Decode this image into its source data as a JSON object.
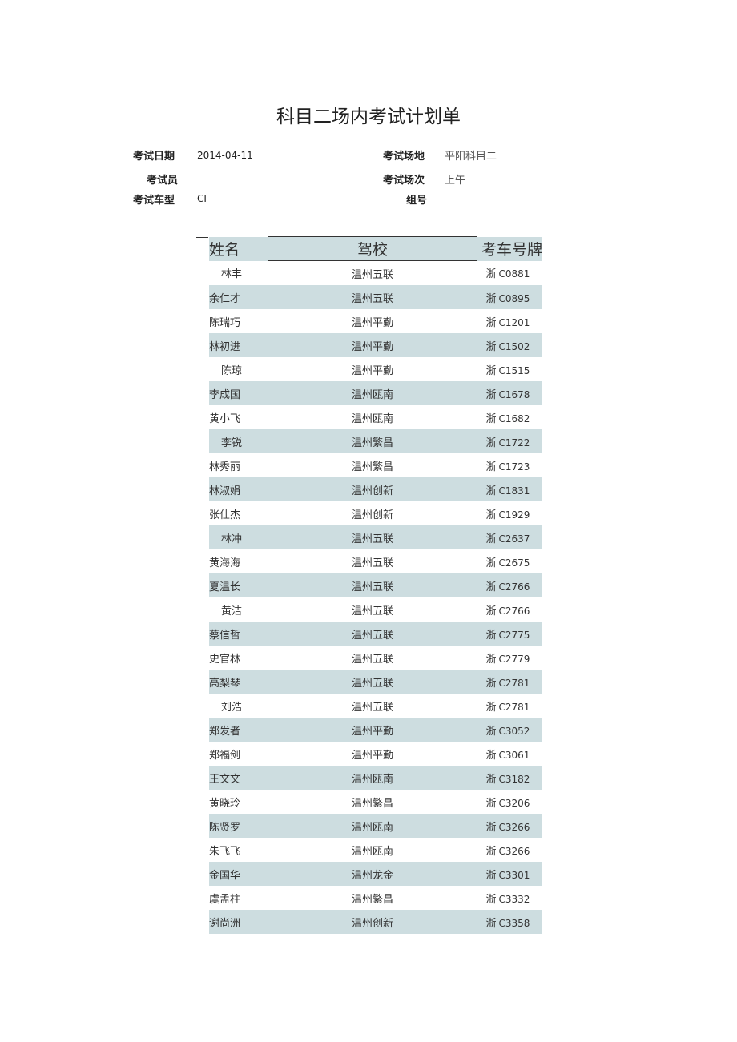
{
  "title": "科目二场内考试计划单",
  "info": {
    "date_label": "考试日期",
    "date_value": "2014-04-11",
    "venue_label": "考试场地",
    "venue_value": "平阳科目二",
    "examiner_label": "考试员",
    "examiner_value": "",
    "session_label": "考试场次",
    "session_value": "上午",
    "vehicle_label": "考试车型",
    "vehicle_value": "CI",
    "group_label": "组号",
    "group_value": ""
  },
  "table": {
    "headers": [
      "姓名",
      "驾校",
      "考车号牌"
    ],
    "shade_color": "#cddde0",
    "rows": [
      {
        "name": "林丰",
        "school": "温州五联",
        "plate_prefix": "浙",
        "plate": "C0881"
      },
      {
        "name": "余仁才",
        "school": "温州五联",
        "plate_prefix": "浙",
        "plate": "C0895"
      },
      {
        "name": "陈瑞巧",
        "school": "温州平勤",
        "plate_prefix": "浙",
        "plate": "C1201"
      },
      {
        "name": "林初进",
        "school": "温州平勤",
        "plate_prefix": "浙",
        "plate": "C1502"
      },
      {
        "name": "陈琼",
        "school": "温州平勤",
        "plate_prefix": "浙",
        "plate": "C1515"
      },
      {
        "name": "李成国",
        "school": "温州瓯南",
        "plate_prefix": "浙",
        "plate": "C1678"
      },
      {
        "name": "黄小飞",
        "school": "温州瓯南",
        "plate_prefix": "浙",
        "plate": "C1682"
      },
      {
        "name": "李锐",
        "school": "温州繁昌",
        "plate_prefix": "浙",
        "plate": "C1722"
      },
      {
        "name": "林秀丽",
        "school": "温州繁昌",
        "plate_prefix": "浙",
        "plate": "C1723"
      },
      {
        "name": "林淑娟",
        "school": "温州创新",
        "plate_prefix": "浙",
        "plate": "C1831"
      },
      {
        "name": "张仕杰",
        "school": "温州创新",
        "plate_prefix": "浙",
        "plate": "C1929"
      },
      {
        "name": "林冲",
        "school": "温州五联",
        "plate_prefix": "浙",
        "plate": "C2637"
      },
      {
        "name": "黄海海",
        "school": "温州五联",
        "plate_prefix": "浙",
        "plate": "C2675"
      },
      {
        "name": "夏温长",
        "school": "温州五联",
        "plate_prefix": "浙",
        "plate": "C2766"
      },
      {
        "name": "黄洁",
        "school": "温州五联",
        "plate_prefix": "浙",
        "plate": "C2766"
      },
      {
        "name": "蔡信哲",
        "school": "温州五联",
        "plate_prefix": "浙",
        "plate": "C2775"
      },
      {
        "name": "史官林",
        "school": "温州五联",
        "plate_prefix": "浙",
        "plate": "C2779"
      },
      {
        "name": "高梨琴",
        "school": "温州五联",
        "plate_prefix": "浙",
        "plate": "C2781"
      },
      {
        "name": "刘浩",
        "school": "温州五联",
        "plate_prefix": "浙",
        "plate": "C2781"
      },
      {
        "name": "郑发者",
        "school": "温州平勤",
        "plate_prefix": "浙",
        "plate": "C3052"
      },
      {
        "name": "郑福剑",
        "school": "温州平勤",
        "plate_prefix": "浙",
        "plate": "C3061"
      },
      {
        "name": "王文文",
        "school": "温州瓯南",
        "plate_prefix": "浙",
        "plate": "C3182"
      },
      {
        "name": "黄晓玲",
        "school": "温州繁昌",
        "plate_prefix": "浙",
        "plate": "C3206"
      },
      {
        "name": "陈贤罗",
        "school": "温州瓯南",
        "plate_prefix": "浙",
        "plate": "C3266"
      },
      {
        "name": "朱飞飞",
        "school": "温州瓯南",
        "plate_prefix": "浙",
        "plate": "C3266"
      },
      {
        "name": "金国华",
        "school": "温州龙金",
        "plate_prefix": "浙",
        "plate": "C3301"
      },
      {
        "name": "虞孟柱",
        "school": "温州繁昌",
        "plate_prefix": "浙",
        "plate": "C3332"
      },
      {
        "name": "谢尚洲",
        "school": "温州创新",
        "plate_prefix": "浙",
        "plate": "C3358"
      }
    ]
  }
}
